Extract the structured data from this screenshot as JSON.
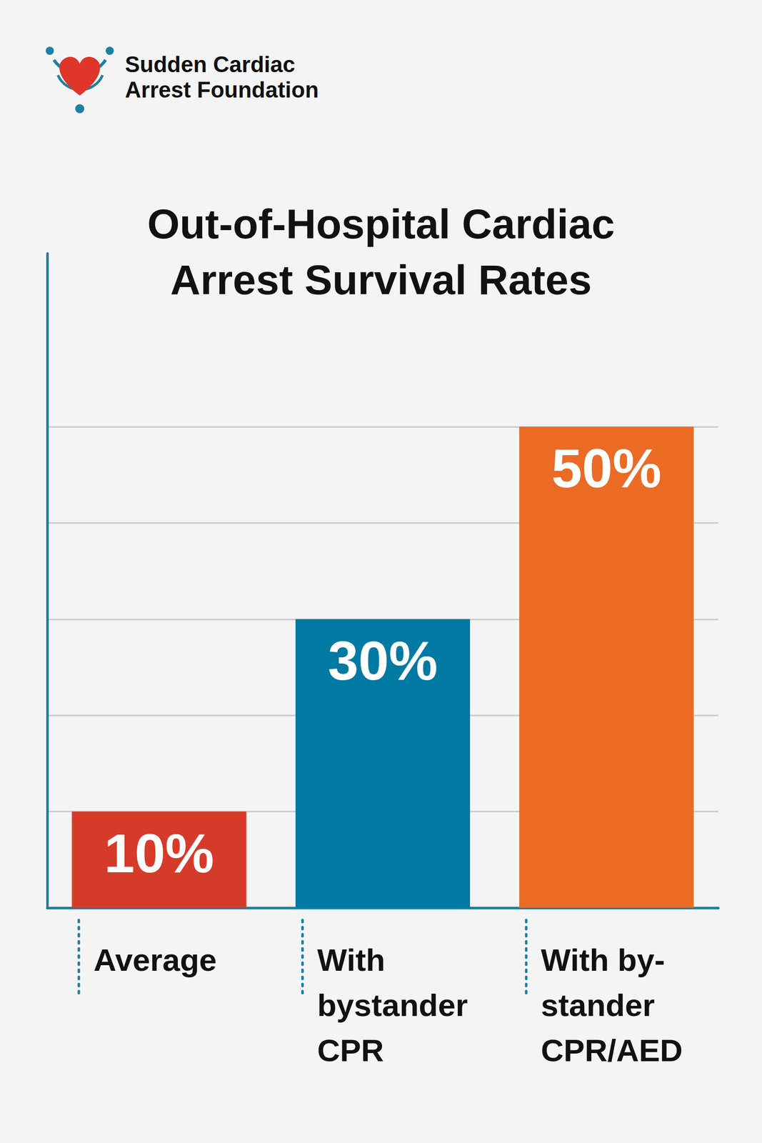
{
  "logo_text": "Sudden Cardiac\nArrest Foundation",
  "chart_data": {
    "type": "bar",
    "title": "Out-of-Hospital Cardiac\nArrest Survival Rates",
    "categories": [
      "Average",
      "With\nbystander\nCPR",
      "With by-\nstander\nCPR/AED"
    ],
    "values": [
      10,
      30,
      50
    ],
    "value_labels": [
      "10%",
      "30%",
      "50%"
    ],
    "colors": [
      "#d63b2a",
      "#0079a3",
      "#eb6b24"
    ],
    "ylim": [
      0,
      68
    ],
    "yticks": [
      0,
      10,
      20,
      30,
      40,
      50
    ],
    "grid": true,
    "data_labels": true,
    "tick_labels": "x"
  }
}
